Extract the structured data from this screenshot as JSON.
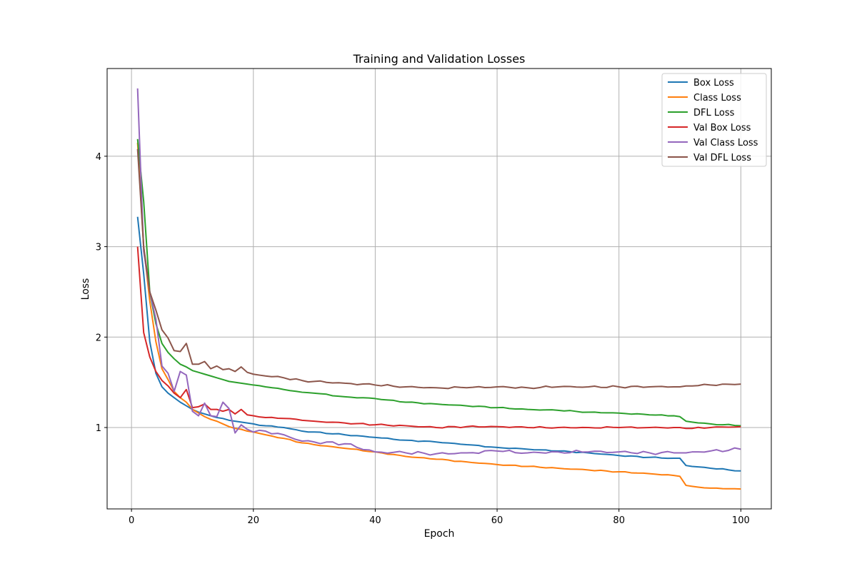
{
  "chart_data": {
    "type": "line",
    "title": "Training and Validation Losses",
    "xlabel": "Epoch",
    "ylabel": "Loss",
    "xlim": [
      -4,
      105
    ],
    "ylim": [
      0.1,
      4.97
    ],
    "xticks": [
      0,
      20,
      40,
      60,
      80,
      100
    ],
    "yticks": [
      1,
      2,
      3,
      4
    ],
    "grid": true,
    "legend_position": "top-right",
    "keyframes": {
      "x": [
        1,
        2,
        3,
        4,
        5,
        6,
        7,
        8,
        9,
        10,
        11,
        12,
        13,
        14,
        15,
        16,
        17,
        18,
        19,
        20,
        22,
        25,
        28,
        30,
        35,
        40,
        45,
        50,
        55,
        60,
        65,
        70,
        75,
        80,
        85,
        89,
        90,
        91,
        92,
        95,
        100
      ],
      "series": [
        {
          "name": "Box Loss",
          "color": "#1f77b4",
          "values": [
            3.33,
            2.7,
            1.95,
            1.6,
            1.45,
            1.38,
            1.33,
            1.28,
            1.24,
            1.2,
            1.17,
            1.15,
            1.13,
            1.11,
            1.1,
            1.08,
            1.07,
            1.06,
            1.05,
            1.04,
            1.02,
            1.0,
            0.96,
            0.95,
            0.92,
            0.89,
            0.86,
            0.84,
            0.81,
            0.78,
            0.76,
            0.74,
            0.72,
            0.69,
            0.67,
            0.66,
            0.66,
            0.58,
            0.57,
            0.55,
            0.52
          ]
        },
        {
          "name": "Class Loss",
          "color": "#ff7f0e",
          "values": [
            4.15,
            3.0,
            2.4,
            1.95,
            1.65,
            1.53,
            1.4,
            1.33,
            1.28,
            1.2,
            1.16,
            1.12,
            1.09,
            1.07,
            1.04,
            1.01,
            0.99,
            0.98,
            0.96,
            0.95,
            0.92,
            0.88,
            0.83,
            0.81,
            0.77,
            0.73,
            0.68,
            0.65,
            0.62,
            0.59,
            0.57,
            0.55,
            0.53,
            0.51,
            0.49,
            0.47,
            0.46,
            0.36,
            0.35,
            0.33,
            0.32
          ]
        },
        {
          "name": "DFL Loss",
          "color": "#2ca02c",
          "values": [
            4.19,
            3.5,
            2.5,
            2.15,
            1.93,
            1.83,
            1.76,
            1.7,
            1.67,
            1.63,
            1.61,
            1.59,
            1.57,
            1.55,
            1.53,
            1.51,
            1.5,
            1.49,
            1.48,
            1.47,
            1.45,
            1.42,
            1.39,
            1.38,
            1.34,
            1.32,
            1.28,
            1.26,
            1.24,
            1.22,
            1.2,
            1.19,
            1.17,
            1.16,
            1.14,
            1.13,
            1.12,
            1.07,
            1.06,
            1.04,
            1.02
          ]
        },
        {
          "name": "Val Box Loss",
          "color": "#d62728",
          "values": [
            3.0,
            2.05,
            1.78,
            1.62,
            1.52,
            1.46,
            1.38,
            1.33,
            1.42,
            1.22,
            1.23,
            1.26,
            1.2,
            1.2,
            1.18,
            1.2,
            1.15,
            1.2,
            1.14,
            1.13,
            1.11,
            1.1,
            1.08,
            1.07,
            1.05,
            1.03,
            1.02,
            1.0,
            1.01,
            1.01,
            1.0,
            1.0,
            1.0,
            1.0,
            1.0,
            1.0,
            1.0,
            0.99,
            0.99,
            1.0,
            1.01
          ]
        },
        {
          "name": "Val Class Loss",
          "color": "#9467bd",
          "values": [
            4.75,
            2.95,
            2.5,
            2.2,
            1.68,
            1.6,
            1.4,
            1.62,
            1.58,
            1.18,
            1.13,
            1.27,
            1.13,
            1.12,
            1.28,
            1.21,
            0.94,
            1.03,
            0.98,
            0.95,
            0.96,
            0.92,
            0.85,
            0.84,
            0.82,
            0.73,
            0.72,
            0.71,
            0.72,
            0.74,
            0.72,
            0.73,
            0.73,
            0.73,
            0.72,
            0.72,
            0.72,
            0.72,
            0.73,
            0.74,
            0.76
          ]
        },
        {
          "name": "Val DFL Loss",
          "color": "#8c564b",
          "values": [
            4.08,
            3.0,
            2.5,
            2.3,
            2.08,
            1.99,
            1.85,
            1.84,
            1.93,
            1.7,
            1.7,
            1.73,
            1.65,
            1.68,
            1.64,
            1.65,
            1.62,
            1.67,
            1.61,
            1.59,
            1.57,
            1.55,
            1.52,
            1.51,
            1.49,
            1.47,
            1.45,
            1.44,
            1.44,
            1.45,
            1.44,
            1.45,
            1.45,
            1.45,
            1.45,
            1.45,
            1.45,
            1.46,
            1.46,
            1.47,
            1.48
          ]
        }
      ]
    }
  }
}
